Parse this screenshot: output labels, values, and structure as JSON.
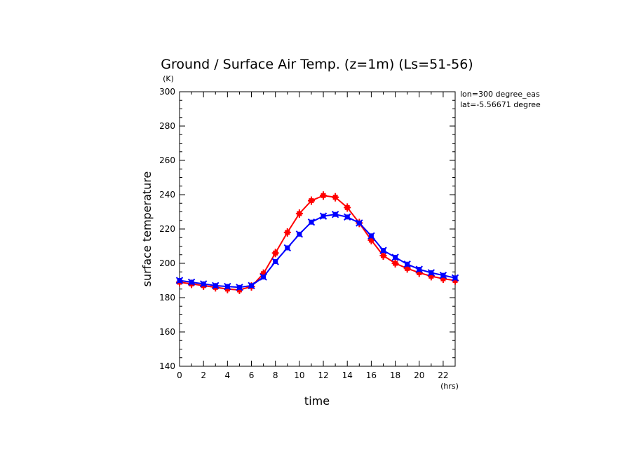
{
  "chart_data": {
    "type": "line",
    "title": "Ground / Surface Air Temp. (z=1m) (Ls=51-56)",
    "xlabel": "time",
    "ylabel": "surface temperature",
    "x_unit": "(hrs)",
    "y_unit": "(K)",
    "annotations": [
      "lon=300 degree_eas",
      "lat=-5.56671 degree"
    ],
    "xlim": [
      0,
      23
    ],
    "ylim": [
      140,
      300
    ],
    "x_ticks": [
      0,
      2,
      4,
      6,
      8,
      10,
      12,
      14,
      16,
      18,
      20,
      22
    ],
    "y_ticks": [
      140,
      160,
      180,
      200,
      220,
      240,
      260,
      280,
      300
    ],
    "x": [
      0,
      1,
      2,
      3,
      4,
      5,
      6,
      7,
      8,
      9,
      10,
      11,
      12,
      13,
      14,
      15,
      16,
      17,
      18,
      19,
      20,
      21,
      22,
      23
    ],
    "series": [
      {
        "color": "#ff0000",
        "marker": "plus",
        "values": [
          189,
          188,
          187,
          186,
          185,
          184.5,
          186.5,
          194,
          206,
          218,
          229,
          236.5,
          239.5,
          238.5,
          232.5,
          223.5,
          213.5,
          204.5,
          200,
          197,
          194.5,
          192.5,
          191,
          190
        ]
      },
      {
        "color": "#0000ff",
        "marker": "x",
        "values": [
          190,
          189,
          188,
          187,
          186.5,
          186,
          187,
          192,
          201,
          209,
          217,
          224,
          227.5,
          228.5,
          227,
          223.5,
          216,
          207.5,
          203.5,
          199.5,
          196.5,
          194.5,
          193,
          191.5
        ]
      }
    ]
  }
}
